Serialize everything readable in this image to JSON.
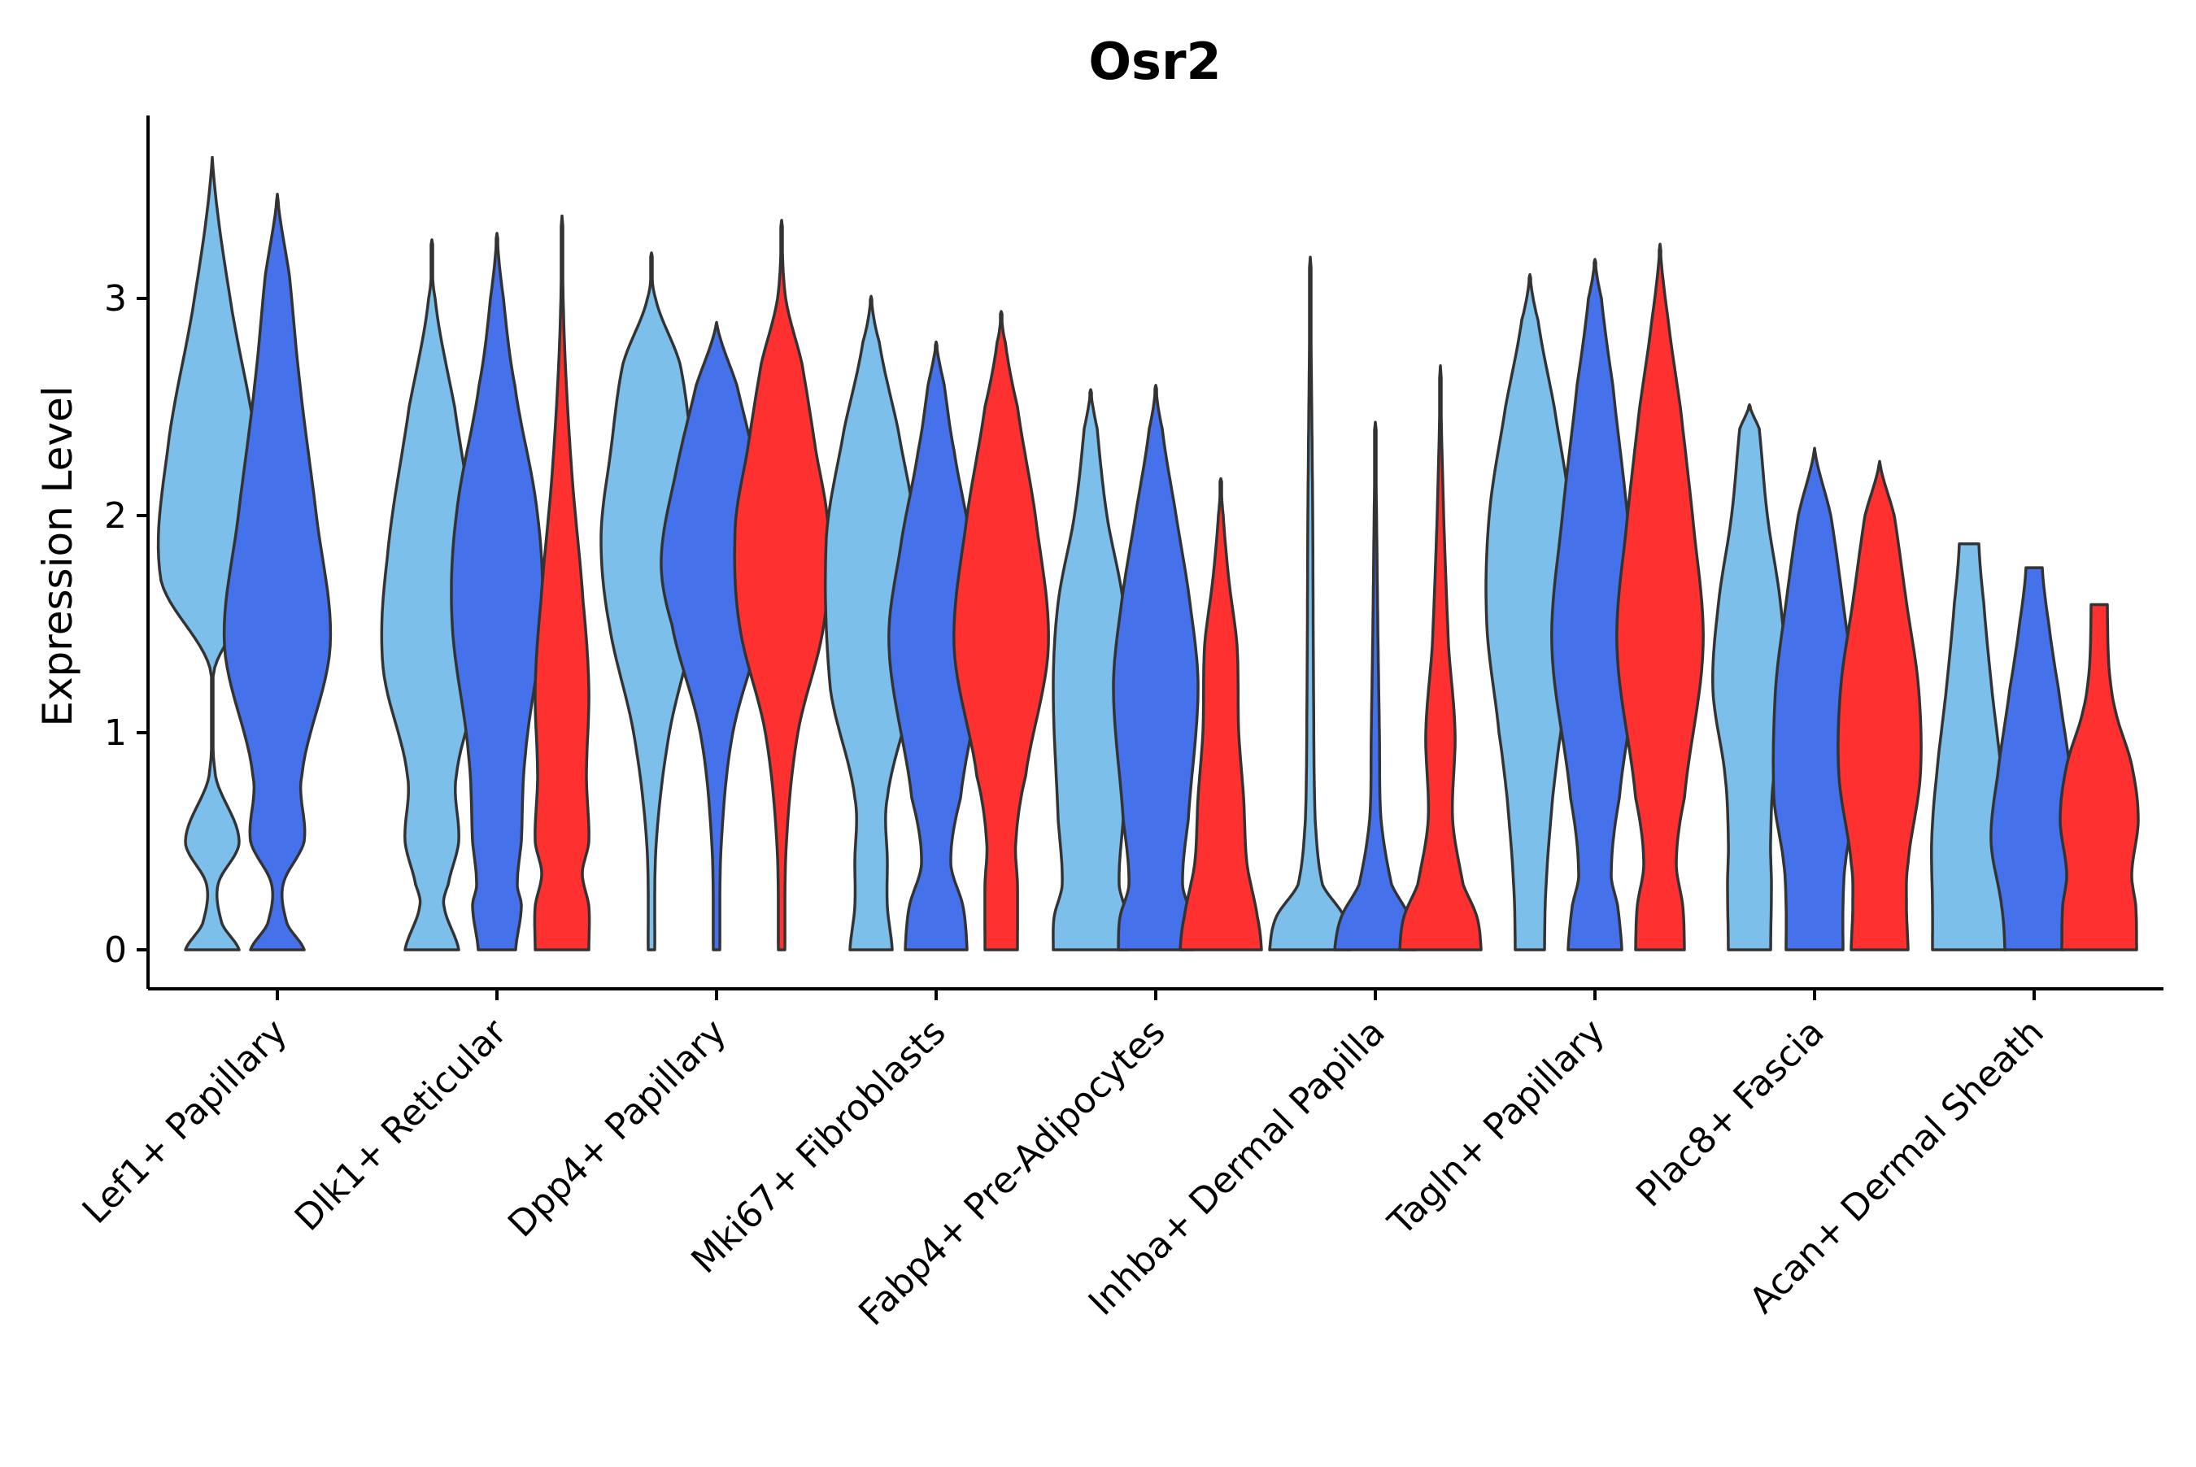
{
  "chart_data": {
    "type": "violin",
    "title": "Osr2",
    "xlabel": "",
    "ylabel": "Expression Level",
    "ylim": [
      -0.18,
      3.85
    ],
    "yticks": [
      0,
      1,
      2,
      3
    ],
    "legend": "none",
    "colors": [
      "#7DBFEB",
      "#4572EB",
      "#FF3030"
    ],
    "categories": [
      "Lef1+ Papillary",
      "Dlk1+ Reticular",
      "Dpp4+ Papillary",
      "Mki67+ Fibroblasts",
      "Fabp4+ Pre-Adipocytes",
      "Inhba+ Dermal Papilla",
      "Tagln+ Papillary",
      "Plac8+ Fascia",
      "Acan+ Dermal Sheath"
    ],
    "violins": [
      {
        "category": 0,
        "series": 0,
        "max": 3.65,
        "profile": [
          [
            0,
            0.33
          ],
          [
            0.12,
            0.12
          ],
          [
            0.3,
            0.07
          ],
          [
            0.5,
            0.33
          ],
          [
            0.8,
            0.04
          ],
          [
            1.3,
            0.03
          ],
          [
            1.7,
            0.63
          ],
          [
            2.3,
            0.55
          ],
          [
            3.0,
            0.22
          ],
          [
            3.65,
            0
          ]
        ]
      },
      {
        "category": 0,
        "series": 1,
        "max": 3.48,
        "profile": [
          [
            0,
            0.33
          ],
          [
            0.12,
            0.12
          ],
          [
            0.3,
            0.07
          ],
          [
            0.5,
            0.33
          ],
          [
            0.8,
            0.3
          ],
          [
            1.4,
            0.65
          ],
          [
            2.0,
            0.48
          ],
          [
            2.6,
            0.28
          ],
          [
            3.1,
            0.15
          ],
          [
            3.48,
            0
          ]
        ]
      },
      {
        "category": 1,
        "series": 0,
        "max": 3.27,
        "profile": [
          [
            0,
            0.33
          ],
          [
            0.2,
            0.15
          ],
          [
            0.3,
            0.2
          ],
          [
            0.5,
            0.33
          ],
          [
            0.8,
            0.3
          ],
          [
            1.3,
            0.6
          ],
          [
            1.8,
            0.55
          ],
          [
            2.5,
            0.28
          ],
          [
            3.0,
            0.04
          ],
          [
            3.27,
            0
          ]
        ]
      },
      {
        "category": 1,
        "series": 1,
        "max": 3.3,
        "profile": [
          [
            0,
            0.23
          ],
          [
            0.2,
            0.3
          ],
          [
            0.3,
            0.25
          ],
          [
            0.5,
            0.3
          ],
          [
            0.9,
            0.35
          ],
          [
            1.5,
            0.55
          ],
          [
            2.0,
            0.5
          ],
          [
            2.6,
            0.22
          ],
          [
            3.0,
            0.08
          ],
          [
            3.3,
            0
          ]
        ]
      },
      {
        "category": 1,
        "series": 2,
        "max": 3.38,
        "profile": [
          [
            0,
            0.33
          ],
          [
            0.2,
            0.33
          ],
          [
            0.35,
            0.25
          ],
          [
            0.5,
            0.33
          ],
          [
            0.8,
            0.3
          ],
          [
            1.2,
            0.33
          ],
          [
            1.6,
            0.26
          ],
          [
            2.2,
            0.12
          ],
          [
            2.8,
            0.03
          ],
          [
            3.38,
            0
          ]
        ]
      },
      {
        "category": 2,
        "series": 0,
        "max": 3.21,
        "profile": [
          [
            0,
            0.04
          ],
          [
            0.5,
            0.06
          ],
          [
            1.0,
            0.22
          ],
          [
            1.5,
            0.52
          ],
          [
            1.9,
            0.62
          ],
          [
            2.3,
            0.5
          ],
          [
            2.7,
            0.35
          ],
          [
            3.0,
            0.05
          ],
          [
            3.21,
            0
          ]
        ]
      },
      {
        "category": 2,
        "series": 1,
        "max": 2.89,
        "profile": [
          [
            0,
            0.04
          ],
          [
            0.5,
            0.06
          ],
          [
            1.0,
            0.2
          ],
          [
            1.5,
            0.55
          ],
          [
            1.8,
            0.68
          ],
          [
            2.2,
            0.5
          ],
          [
            2.6,
            0.25
          ],
          [
            2.89,
            0
          ]
        ]
      },
      {
        "category": 2,
        "series": 2,
        "max": 3.36,
        "profile": [
          [
            0,
            0.04
          ],
          [
            0.5,
            0.06
          ],
          [
            1.0,
            0.2
          ],
          [
            1.5,
            0.52
          ],
          [
            1.95,
            0.57
          ],
          [
            2.3,
            0.42
          ],
          [
            2.7,
            0.25
          ],
          [
            3.0,
            0.05
          ],
          [
            3.36,
            0
          ]
        ]
      },
      {
        "category": 3,
        "series": 0,
        "max": 3.01,
        "profile": [
          [
            0,
            0.26
          ],
          [
            0.2,
            0.2
          ],
          [
            0.4,
            0.2
          ],
          [
            0.7,
            0.2
          ],
          [
            1.2,
            0.5
          ],
          [
            1.9,
            0.55
          ],
          [
            2.4,
            0.33
          ],
          [
            2.8,
            0.1
          ],
          [
            3.01,
            0
          ]
        ]
      },
      {
        "category": 3,
        "series": 1,
        "max": 2.8,
        "profile": [
          [
            0,
            0.38
          ],
          [
            0.2,
            0.33
          ],
          [
            0.4,
            0.18
          ],
          [
            0.7,
            0.3
          ],
          [
            1.4,
            0.58
          ],
          [
            1.9,
            0.42
          ],
          [
            2.3,
            0.22
          ],
          [
            2.6,
            0.1
          ],
          [
            2.8,
            0
          ]
        ]
      },
      {
        "category": 3,
        "series": 2,
        "max": 2.94,
        "profile": [
          [
            0,
            0.2
          ],
          [
            0.3,
            0.2
          ],
          [
            0.5,
            0.18
          ],
          [
            0.8,
            0.3
          ],
          [
            1.4,
            0.58
          ],
          [
            2.0,
            0.42
          ],
          [
            2.5,
            0.2
          ],
          [
            2.8,
            0.05
          ],
          [
            2.94,
            0
          ]
        ]
      },
      {
        "category": 4,
        "series": 0,
        "max": 2.58,
        "profile": [
          [
            0,
            0.46
          ],
          [
            0.15,
            0.45
          ],
          [
            0.3,
            0.35
          ],
          [
            0.6,
            0.4
          ],
          [
            1.2,
            0.46
          ],
          [
            1.6,
            0.4
          ],
          [
            2.0,
            0.2
          ],
          [
            2.4,
            0.08
          ],
          [
            2.58,
            0
          ]
        ]
      },
      {
        "category": 4,
        "series": 1,
        "max": 2.6,
        "profile": [
          [
            0,
            0.46
          ],
          [
            0.15,
            0.44
          ],
          [
            0.3,
            0.33
          ],
          [
            0.6,
            0.4
          ],
          [
            1.2,
            0.52
          ],
          [
            1.6,
            0.42
          ],
          [
            2.0,
            0.25
          ],
          [
            2.4,
            0.08
          ],
          [
            2.6,
            0
          ]
        ]
      },
      {
        "category": 4,
        "series": 2,
        "max": 2.17,
        "profile": [
          [
            0,
            0.5
          ],
          [
            0.15,
            0.45
          ],
          [
            0.4,
            0.32
          ],
          [
            0.7,
            0.28
          ],
          [
            1.0,
            0.22
          ],
          [
            1.4,
            0.2
          ],
          [
            1.7,
            0.1
          ],
          [
            2.0,
            0.03
          ],
          [
            2.17,
            0
          ]
        ]
      },
      {
        "category": 5,
        "series": 0,
        "max": 3.19,
        "profile": [
          [
            0,
            0.5
          ],
          [
            0.15,
            0.42
          ],
          [
            0.3,
            0.15
          ],
          [
            0.6,
            0.06
          ],
          [
            1.2,
            0.04
          ],
          [
            2.0,
            0.03
          ],
          [
            2.6,
            0.015
          ],
          [
            3.19,
            0
          ]
        ]
      },
      {
        "category": 5,
        "series": 1,
        "max": 2.43,
        "profile": [
          [
            0,
            0.5
          ],
          [
            0.15,
            0.42
          ],
          [
            0.3,
            0.2
          ],
          [
            0.6,
            0.07
          ],
          [
            1.0,
            0.05
          ],
          [
            1.5,
            0.03
          ],
          [
            2.0,
            0.015
          ],
          [
            2.43,
            0
          ]
        ]
      },
      {
        "category": 5,
        "series": 2,
        "max": 2.69,
        "profile": [
          [
            0,
            0.5
          ],
          [
            0.15,
            0.45
          ],
          [
            0.3,
            0.28
          ],
          [
            0.6,
            0.15
          ],
          [
            1.0,
            0.18
          ],
          [
            1.4,
            0.1
          ],
          [
            2.0,
            0.04
          ],
          [
            2.69,
            0
          ]
        ]
      },
      {
        "category": 6,
        "series": 0,
        "max": 3.11,
        "profile": [
          [
            0,
            0.18
          ],
          [
            0.3,
            0.2
          ],
          [
            0.7,
            0.28
          ],
          [
            1.0,
            0.38
          ],
          [
            1.5,
            0.53
          ],
          [
            2.0,
            0.5
          ],
          [
            2.5,
            0.3
          ],
          [
            2.9,
            0.1
          ],
          [
            3.11,
            0
          ]
        ]
      },
      {
        "category": 6,
        "series": 1,
        "max": 3.18,
        "profile": [
          [
            0,
            0.33
          ],
          [
            0.2,
            0.28
          ],
          [
            0.35,
            0.2
          ],
          [
            0.7,
            0.3
          ],
          [
            1.4,
            0.53
          ],
          [
            2.0,
            0.4
          ],
          [
            2.6,
            0.22
          ],
          [
            3.0,
            0.08
          ],
          [
            3.18,
            0
          ]
        ]
      },
      {
        "category": 6,
        "series": 2,
        "max": 3.25,
        "profile": [
          [
            0,
            0.3
          ],
          [
            0.2,
            0.28
          ],
          [
            0.4,
            0.2
          ],
          [
            0.7,
            0.3
          ],
          [
            1.4,
            0.53
          ],
          [
            2.0,
            0.4
          ],
          [
            2.5,
            0.25
          ],
          [
            2.9,
            0.1
          ],
          [
            3.25,
            0
          ]
        ]
      },
      {
        "category": 7,
        "series": 0,
        "max": 2.51,
        "profile": [
          [
            0,
            0.26
          ],
          [
            0.3,
            0.27
          ],
          [
            0.5,
            0.26
          ],
          [
            0.8,
            0.3
          ],
          [
            1.2,
            0.45
          ],
          [
            1.6,
            0.38
          ],
          [
            2.0,
            0.22
          ],
          [
            2.4,
            0.12
          ],
          [
            2.51,
            0
          ]
        ]
      },
      {
        "category": 7,
        "series": 1,
        "max": 2.31,
        "profile": [
          [
            0,
            0.35
          ],
          [
            0.2,
            0.35
          ],
          [
            0.4,
            0.38
          ],
          [
            0.7,
            0.5
          ],
          [
            1.2,
            0.48
          ],
          [
            1.6,
            0.35
          ],
          [
            2.0,
            0.2
          ],
          [
            2.31,
            0
          ]
        ]
      },
      {
        "category": 7,
        "series": 2,
        "max": 2.25,
        "profile": [
          [
            0,
            0.35
          ],
          [
            0.2,
            0.33
          ],
          [
            0.4,
            0.35
          ],
          [
            0.8,
            0.5
          ],
          [
            1.2,
            0.48
          ],
          [
            1.6,
            0.33
          ],
          [
            2.0,
            0.18
          ],
          [
            2.25,
            0
          ]
        ]
      },
      {
        "category": 8,
        "series": 0,
        "max": 1.87,
        "profile": [
          [
            0,
            0.45
          ],
          [
            0.2,
            0.45
          ],
          [
            0.5,
            0.46
          ],
          [
            0.8,
            0.4
          ],
          [
            1.2,
            0.28
          ],
          [
            1.6,
            0.18
          ],
          [
            1.87,
            0.12
          ]
        ]
      },
      {
        "category": 8,
        "series": 1,
        "max": 1.76,
        "profile": [
          [
            0,
            0.36
          ],
          [
            0.2,
            0.4
          ],
          [
            0.5,
            0.53
          ],
          [
            0.8,
            0.45
          ],
          [
            1.2,
            0.3
          ],
          [
            1.5,
            0.18
          ],
          [
            1.76,
            0.1
          ]
        ]
      },
      {
        "category": 8,
        "series": 2,
        "max": 1.59,
        "profile": [
          [
            0,
            0.46
          ],
          [
            0.2,
            0.45
          ],
          [
            0.35,
            0.4
          ],
          [
            0.6,
            0.48
          ],
          [
            0.85,
            0.4
          ],
          [
            1.1,
            0.2
          ],
          [
            1.3,
            0.12
          ],
          [
            1.59,
            0.1
          ]
        ]
      }
    ]
  }
}
